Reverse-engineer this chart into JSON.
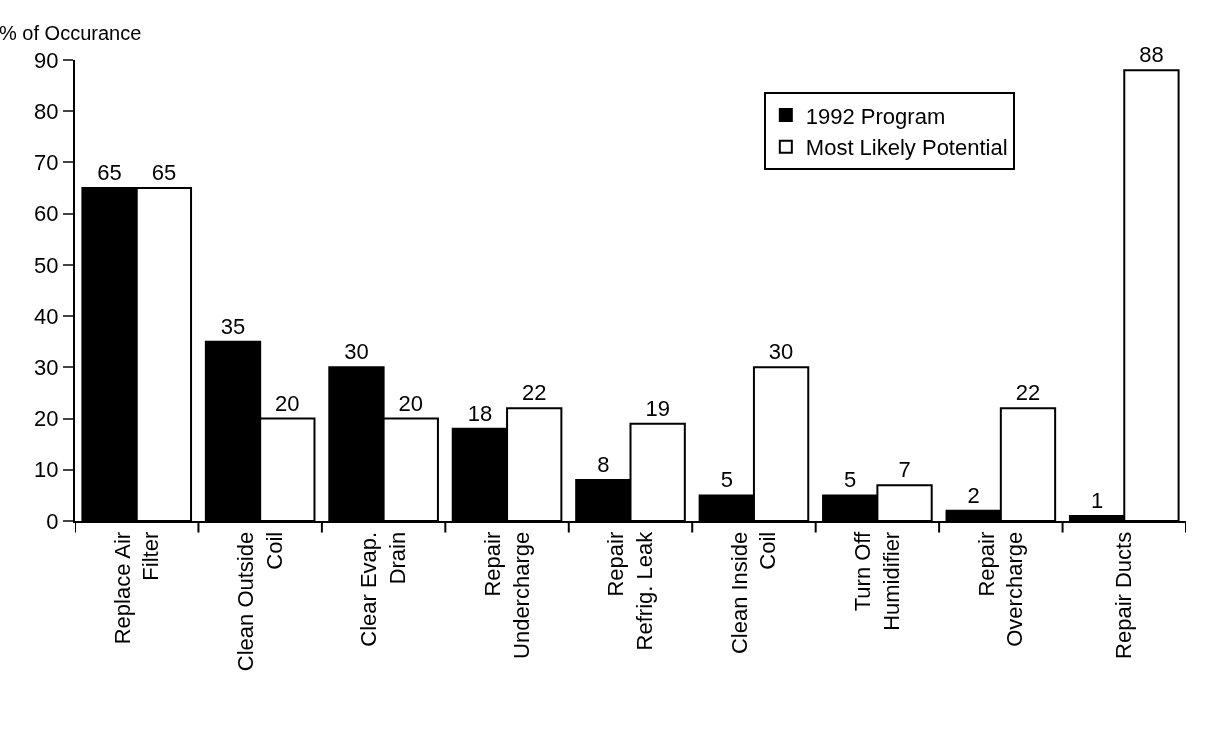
{
  "chart_data": {
    "type": "bar",
    "ylabel": "% of Occurance",
    "categories": [
      "Replace Air\nFilter",
      "Clean Outside\nCoil",
      "Clear Evap.\nDrain",
      "Repair\nUndercharge",
      "Repair\nRefrig. Leak",
      "Clean Inside\nCoil",
      "Turn Off\nHumidifier",
      "Repair\nOvercharge",
      "Repair Ducts"
    ],
    "series": [
      {
        "name": "1992 Program",
        "color": "#000000",
        "values": [
          65,
          35,
          30,
          18,
          8,
          5,
          5,
          2,
          1
        ]
      },
      {
        "name": "Most Likely Potential",
        "color": "#ffffff",
        "values": [
          65,
          20,
          20,
          22,
          19,
          30,
          7,
          22,
          88
        ]
      }
    ],
    "ylim": [
      0,
      90
    ],
    "yticks": [
      0,
      10,
      20,
      30,
      40,
      50,
      60,
      70,
      80,
      90
    ],
    "data_labels": true,
    "legend": "top right"
  }
}
